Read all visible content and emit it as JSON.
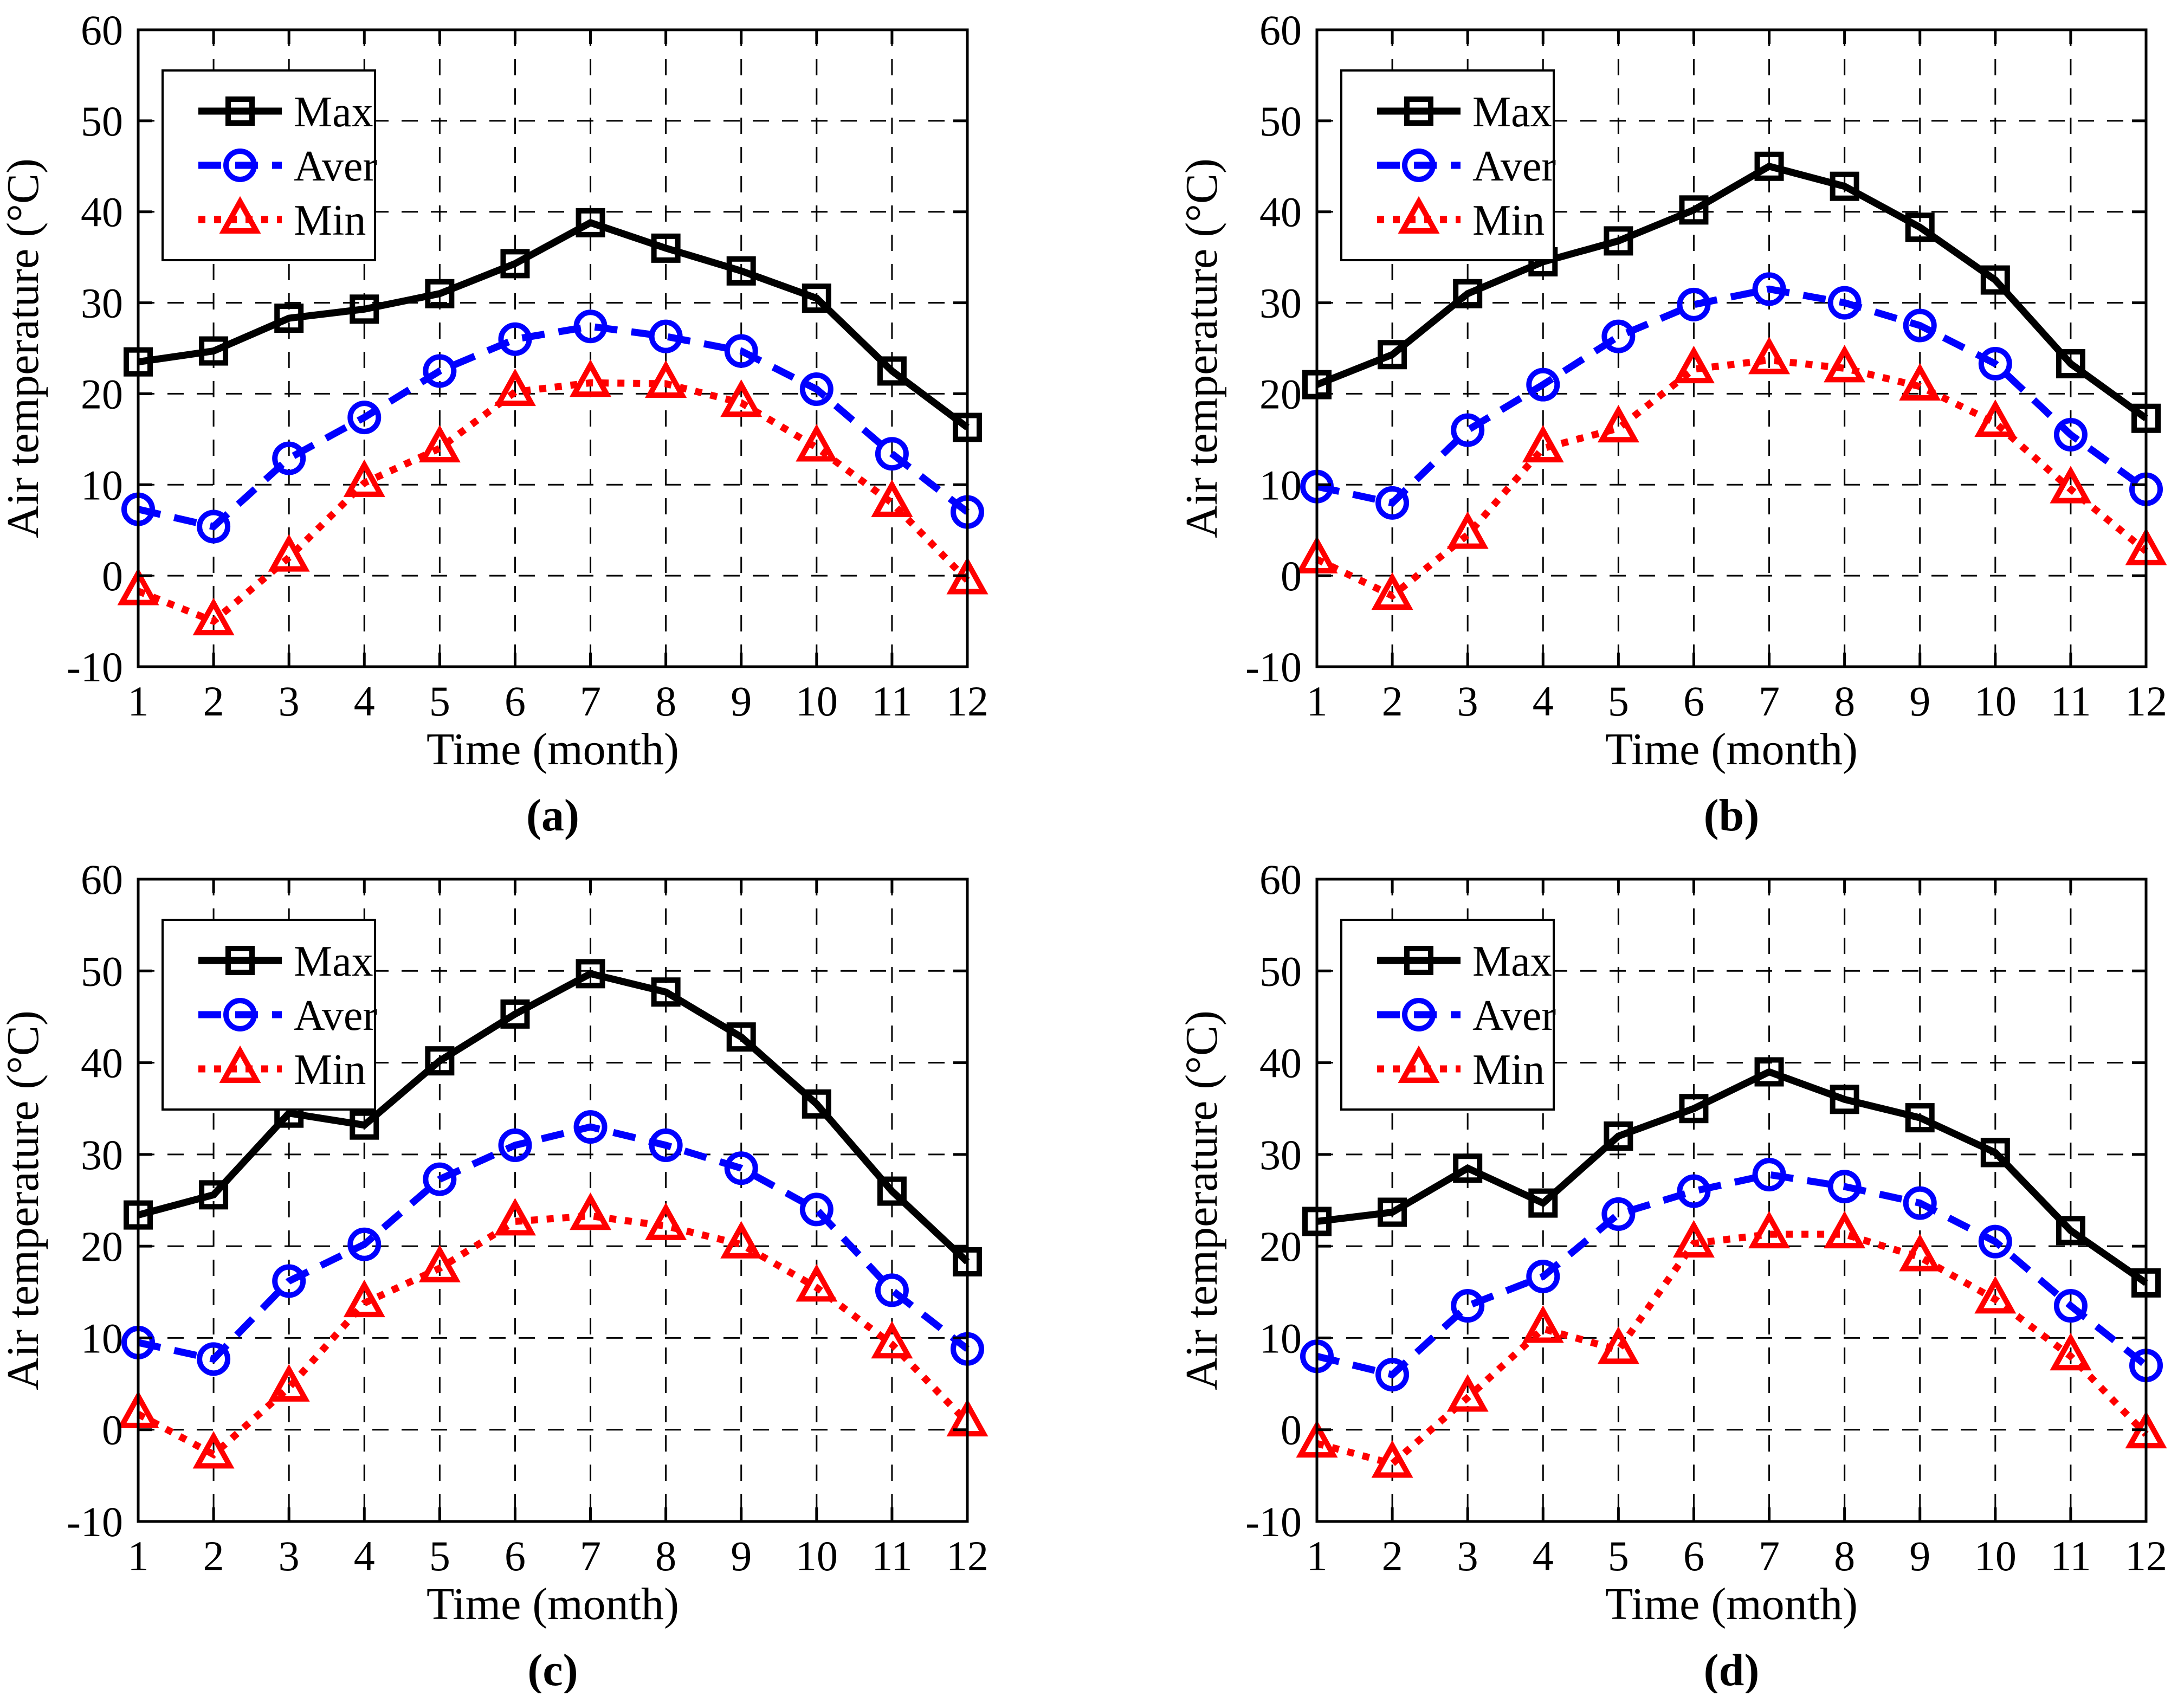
{
  "page": {
    "background": "#ffffff"
  },
  "chart_data": [
    {
      "type": "line",
      "panel": "a",
      "caption": "(a)",
      "xlabel": "Time (month)",
      "ylabel": "Air temperature (°C)",
      "x": [
        1,
        2,
        3,
        4,
        5,
        6,
        7,
        8,
        9,
        10,
        11,
        12
      ],
      "xlim": [
        1,
        12
      ],
      "ylim": [
        -10,
        60
      ],
      "yticks": [
        -10,
        0,
        10,
        20,
        30,
        40,
        50,
        60
      ],
      "grid": "dashed",
      "legend_position": "top-left",
      "legend_labels": [
        "Max",
        "Aver",
        "Min"
      ],
      "series": [
        {
          "name": "Max",
          "color": "#000000",
          "line": "solid",
          "marker": "square",
          "values": [
            23.5,
            24.7,
            28.3,
            29.3,
            31.0,
            34.3,
            38.8,
            36.0,
            33.5,
            30.5,
            22.5,
            16.3
          ]
        },
        {
          "name": "Aver",
          "color": "#0000ff",
          "line": "dashed",
          "marker": "circle",
          "values": [
            7.3,
            5.4,
            12.9,
            17.4,
            22.5,
            26.0,
            27.4,
            26.3,
            24.7,
            20.5,
            13.4,
            7.0
          ]
        },
        {
          "name": "Min",
          "color": "#ff0000",
          "line": "dotted",
          "marker": "triangle",
          "values": [
            -1.7,
            -5.0,
            2.0,
            10.2,
            14.0,
            20.2,
            21.2,
            21.1,
            19.0,
            14.1,
            8.0,
            -0.5
          ]
        }
      ]
    },
    {
      "type": "line",
      "panel": "b",
      "caption": "(b)",
      "xlabel": "Time (month)",
      "ylabel": "Air temperature (°C)",
      "x": [
        1,
        2,
        3,
        4,
        5,
        6,
        7,
        8,
        9,
        10,
        11,
        12
      ],
      "xlim": [
        1,
        12
      ],
      "ylim": [
        -10,
        60
      ],
      "yticks": [
        -10,
        0,
        10,
        20,
        30,
        40,
        50,
        60
      ],
      "grid": "dashed",
      "legend_position": "top-left",
      "legend_labels": [
        "Max",
        "Aver",
        "Min"
      ],
      "series": [
        {
          "name": "Max",
          "color": "#000000",
          "line": "solid",
          "marker": "square",
          "values": [
            21.0,
            24.3,
            31.0,
            34.5,
            36.8,
            40.2,
            45.0,
            42.8,
            38.3,
            32.5,
            23.3,
            17.3
          ]
        },
        {
          "name": "Aver",
          "color": "#0000ff",
          "line": "dashed",
          "marker": "circle",
          "values": [
            9.8,
            8.0,
            16.0,
            21.0,
            26.3,
            29.8,
            31.5,
            30.0,
            27.5,
            23.3,
            15.5,
            9.5
          ]
        },
        {
          "name": "Min",
          "color": "#ff0000",
          "line": "dotted",
          "marker": "triangle",
          "values": [
            1.8,
            -2.2,
            4.5,
            14.0,
            16.2,
            22.7,
            23.7,
            22.8,
            20.8,
            16.8,
            9.5,
            2.7
          ]
        }
      ]
    },
    {
      "type": "line",
      "panel": "c",
      "caption": "(c)",
      "xlabel": "Time (month)",
      "ylabel": "Air temperature (°C)",
      "x": [
        1,
        2,
        3,
        4,
        5,
        6,
        7,
        8,
        9,
        10,
        11,
        12
      ],
      "xlim": [
        1,
        12
      ],
      "ylim": [
        -10,
        60
      ],
      "yticks": [
        -10,
        0,
        10,
        20,
        30,
        40,
        50,
        60
      ],
      "grid": "dashed",
      "legend_position": "top-left",
      "legend_labels": [
        "Max",
        "Aver",
        "Min"
      ],
      "series": [
        {
          "name": "Max",
          "color": "#000000",
          "line": "solid",
          "marker": "square",
          "values": [
            23.4,
            25.6,
            34.5,
            33.2,
            40.2,
            45.3,
            49.7,
            47.7,
            42.8,
            35.5,
            26.0,
            18.3
          ]
        },
        {
          "name": "Aver",
          "color": "#0000ff",
          "line": "dashed",
          "marker": "circle",
          "values": [
            9.5,
            7.7,
            16.2,
            20.2,
            27.3,
            31.0,
            33.0,
            31.0,
            28.5,
            24.0,
            15.2,
            8.8
          ]
        },
        {
          "name": "Min",
          "color": "#ff0000",
          "line": "dotted",
          "marker": "triangle",
          "values": [
            1.7,
            -2.7,
            4.6,
            13.8,
            17.6,
            22.7,
            23.3,
            22.2,
            20.2,
            15.5,
            9.3,
            0.8
          ]
        }
      ]
    },
    {
      "type": "line",
      "panel": "d",
      "caption": "(d)",
      "xlabel": "Time (month)",
      "ylabel": "Air temperature (°C)",
      "x": [
        1,
        2,
        3,
        4,
        5,
        6,
        7,
        8,
        9,
        10,
        11,
        12
      ],
      "xlim": [
        1,
        12
      ],
      "ylim": [
        -10,
        60
      ],
      "yticks": [
        -10,
        0,
        10,
        20,
        30,
        40,
        50,
        60
      ],
      "grid": "dashed",
      "legend_position": "top-left",
      "legend_labels": [
        "Max",
        "Aver",
        "Min"
      ],
      "series": [
        {
          "name": "Max",
          "color": "#000000",
          "line": "solid",
          "marker": "square",
          "values": [
            22.7,
            23.7,
            28.5,
            24.7,
            32.0,
            35.0,
            39.0,
            36.0,
            34.0,
            30.2,
            21.7,
            16.0
          ]
        },
        {
          "name": "Aver",
          "color": "#0000ff",
          "line": "dashed",
          "marker": "circle",
          "values": [
            8.0,
            6.0,
            13.5,
            16.7,
            23.5,
            26.0,
            27.8,
            26.5,
            24.7,
            20.5,
            13.5,
            7.0
          ]
        },
        {
          "name": "Min",
          "color": "#ff0000",
          "line": "dotted",
          "marker": "triangle",
          "values": [
            -1.5,
            -3.7,
            3.5,
            11.0,
            8.7,
            20.3,
            21.3,
            21.3,
            18.8,
            14.2,
            8.0,
            -0.5
          ]
        }
      ]
    }
  ]
}
